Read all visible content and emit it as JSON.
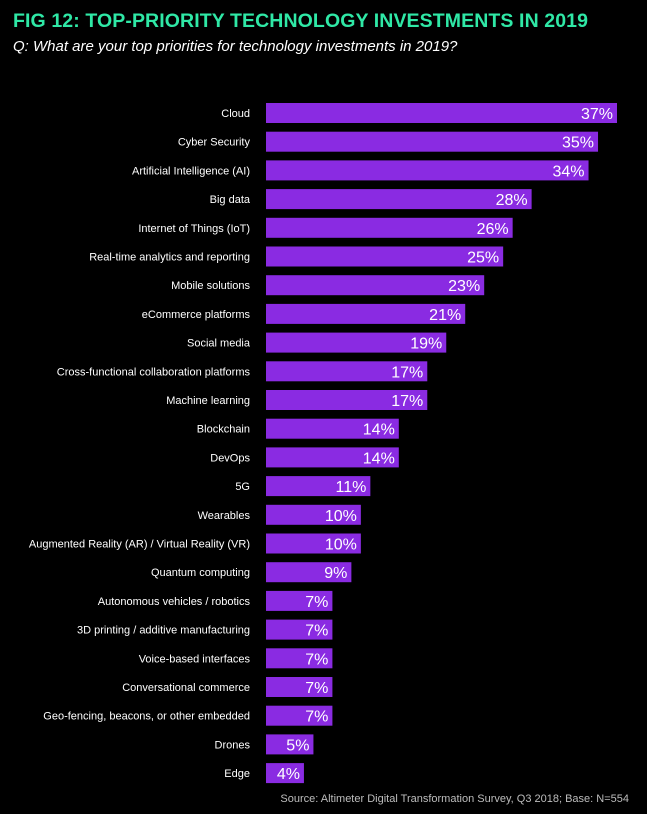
{
  "header": {
    "title": "FIG 12: TOP-PRIORITY TECHNOLOGY INVESTMENTS IN 2019",
    "subtitle": "Q: What are your top priorities for technology investments in 2019?"
  },
  "footer": {
    "source": "Source: Altimeter Digital Transformation Survey, Q3 2018; Base: N=554"
  },
  "colors": {
    "background": "#000000",
    "title": "#2fe8a6",
    "bar": "#8a2be2",
    "label": "#ffffff"
  },
  "chart_data": {
    "type": "bar",
    "orientation": "horizontal",
    "value_suffix": "%",
    "categories": [
      "Cloud",
      "Cyber Security",
      "Artificial Intelligence (AI)",
      "Big data",
      "Internet of Things (IoT)",
      "Real-time analytics and reporting",
      "Mobile solutions",
      "eCommerce platforms",
      "Social media",
      "Cross-functional collaboration platforms",
      "Machine learning",
      "Blockchain",
      "DevOps",
      "5G",
      "Wearables",
      "Augmented Reality (AR) / Virtual Reality (VR)",
      "Quantum computing",
      "Autonomous vehicles / robotics",
      "3D printing / additive manufacturing",
      "Voice-based interfaces",
      "Conversational commerce",
      "Geo-fencing, beacons, or other embedded",
      "Drones",
      "Edge"
    ],
    "values": [
      37,
      35,
      34,
      28,
      26,
      25,
      23,
      21,
      19,
      17,
      17,
      14,
      14,
      11,
      10,
      10,
      9,
      7,
      7,
      7,
      7,
      7,
      5,
      4
    ],
    "xlim": [
      0,
      37
    ],
    "grid": false,
    "legend": "none"
  }
}
